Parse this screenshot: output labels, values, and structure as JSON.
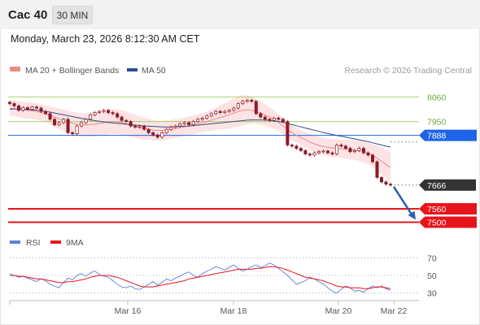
{
  "header": {
    "symbol": "Cac 40",
    "timeframe": "30 MIN",
    "datetime": "Monday, March 23, 2026 8:12:30 AM CET"
  },
  "legend": {
    "ma20_label": "MA 20 + Bollinger Bands",
    "ma50_label": "MA 50",
    "rsi_label": "RSI",
    "ma9_label": "9MA",
    "credit": "Research © 2026 Trading Central"
  },
  "colors": {
    "ma20": "#f08a8a",
    "ma50": "#2c4f8c",
    "bollinger_fill": "#fde3e3",
    "resistance": "#a6d36a",
    "resistance_text": "#6ea83a",
    "pivot": "#1e64e8",
    "support": "#e8141c",
    "last_price": "#333333",
    "candle": "#8b1a2a",
    "rsi": "#5b7fd8",
    "rsi_ma": "#e8141c",
    "arrow": "#2e5fae"
  },
  "chart_data": [
    {
      "type": "candlestick",
      "ylim": [
        7440,
        8130
      ],
      "x_tick_labels": [
        "Mar 16",
        "Mar 18",
        "Mar 20",
        "Mar 22"
      ],
      "levels": [
        {
          "value": 8060,
          "label": "8060",
          "kind": "resistance"
        },
        {
          "value": 7950,
          "label": "7950",
          "kind": "resistance"
        },
        {
          "value": 7888,
          "label": "7888",
          "kind": "pivot"
        },
        {
          "value": 7666,
          "label": "7666",
          "kind": "last"
        },
        {
          "value": 7560,
          "label": "7560",
          "kind": "support"
        },
        {
          "value": 7500,
          "label": "7500",
          "kind": "support"
        }
      ],
      "close_series": [
        8030,
        8020,
        8000,
        8012,
        8005,
        8015,
        8010,
        7995,
        7985,
        7960,
        7935,
        7945,
        7960,
        7900,
        7895,
        7930,
        7945,
        7960,
        7980,
        7990,
        7995,
        8000,
        7990,
        7985,
        7970,
        7955,
        7950,
        7930,
        7925,
        7930,
        7915,
        7900,
        7890,
        7880,
        7900,
        7915,
        7925,
        7930,
        7940,
        7945,
        7935,
        7950,
        7960,
        7965,
        7975,
        7985,
        7995,
        7990,
        7995,
        8000,
        8010,
        8030,
        8040,
        8045,
        8040,
        7985,
        7970,
        7960,
        7955,
        7965,
        7960,
        7950,
        7845,
        7840,
        7830,
        7820,
        7805,
        7800,
        7810,
        7815,
        7818,
        7810,
        7805,
        7845,
        7840,
        7830,
        7815,
        7820,
        7830,
        7810,
        7800,
        7770,
        7700,
        7680,
        7670,
        7666
      ],
      "ma20_series": [
        8010,
        8008,
        8005,
        8002,
        8000,
        7998,
        7995,
        7990,
        7985,
        7978,
        7970,
        7962,
        7955,
        7948,
        7942,
        7938,
        7936,
        7935,
        7936,
        7938,
        7942,
        7945,
        7948,
        7950,
        7948,
        7945,
        7940,
        7935,
        7928,
        7922,
        7918,
        7915,
        7912,
        7910,
        7910,
        7912,
        7915,
        7918,
        7922,
        7926,
        7930,
        7935,
        7940,
        7945,
        7950,
        7956,
        7962,
        7968,
        7974,
        7980,
        7988,
        7995,
        8000,
        8002,
        8000,
        7995,
        7988,
        7980,
        7970,
        7958,
        7945,
        7930,
        7915,
        7900,
        7888,
        7878,
        7868,
        7858,
        7850,
        7843,
        7838,
        7835,
        7832,
        7830,
        7828,
        7826,
        7824,
        7822,
        7820,
        7815,
        7808,
        7798,
        7786,
        7772,
        7758,
        7745
      ],
      "ma50_series": [
        8005,
        8006,
        8006,
        8005,
        8004,
        8002,
        8000,
        7998,
        7995,
        7992,
        7988,
        7984,
        7980,
        7976,
        7972,
        7968,
        7964,
        7960,
        7957,
        7954,
        7951,
        7948,
        7946,
        7944,
        7942,
        7940,
        7938,
        7936,
        7934,
        7932,
        7930,
        7929,
        7928,
        7927,
        7926,
        7926,
        7926,
        7927,
        7928,
        7929,
        7930,
        7932,
        7934,
        7936,
        7938,
        7940,
        7942,
        7944,
        7946,
        7948,
        7950,
        7952,
        7954,
        7956,
        7957,
        7957,
        7957,
        7956,
        7955,
        7953,
        7950,
        7946,
        7941,
        7936,
        7931,
        7926,
        7921,
        7916,
        7911,
        7906,
        7901,
        7896,
        7892,
        7888,
        7884,
        7880,
        7876,
        7872,
        7868,
        7864,
        7860,
        7855,
        7850,
        7845,
        7840,
        7836
      ],
      "bollinger_upper": [
        8045,
        8043,
        8040,
        8038,
        8036,
        8034,
        8031,
        8027,
        8023,
        8018,
        8013,
        8008,
        8003,
        7998,
        7994,
        7990,
        7988,
        7988,
        7990,
        7993,
        7997,
        8001,
        8004,
        8006,
        8004,
        8000,
        7994,
        7988,
        7980,
        7973,
        7967,
        7962,
        7958,
        7955,
        7954,
        7955,
        7957,
        7960,
        7964,
        7968,
        7972,
        7977,
        7982,
        7988,
        7995,
        8003,
        8012,
        8022,
        8032,
        8042,
        8053,
        8063,
        8068,
        8066,
        8060,
        8050,
        8040,
        8028,
        8014,
        7998,
        7982,
        7966,
        7950,
        7935,
        7922,
        7912,
        7903,
        7895,
        7888,
        7882,
        7877,
        7874,
        7872,
        7870,
        7869,
        7868,
        7867,
        7866,
        7865,
        7862,
        7857,
        7850,
        7842,
        7833,
        7823,
        7813
      ],
      "bollinger_lower": [
        7975,
        7973,
        7970,
        7966,
        7964,
        7962,
        7959,
        7953,
        7947,
        7938,
        7927,
        7916,
        7907,
        7898,
        7890,
        7886,
        7884,
        7882,
        7882,
        7883,
        7887,
        7889,
        7892,
        7894,
        7892,
        7890,
        7886,
        7882,
        7876,
        7871,
        7869,
        7868,
        7866,
        7865,
        7866,
        7869,
        7873,
        7876,
        7880,
        7884,
        7888,
        7893,
        7898,
        7902,
        7905,
        7909,
        7912,
        7914,
        7916,
        7918,
        7923,
        7927,
        7932,
        7938,
        7940,
        7940,
        7936,
        7932,
        7926,
        7918,
        7908,
        7894,
        7880,
        7865,
        7854,
        7844,
        7833,
        7821,
        7812,
        7804,
        7799,
        7796,
        7792,
        7790,
        7787,
        7784,
        7781,
        7778,
        7775,
        7768,
        7759,
        7746,
        7730,
        7711,
        7693,
        7677
      ],
      "forecast": {
        "from": 7666,
        "to": 7500
      }
    },
    {
      "type": "line",
      "name": "RSI",
      "ylim": [
        26,
        74
      ],
      "y_tick_labels": [
        "70",
        "50",
        "30"
      ],
      "rsi_series": [
        52,
        50,
        48,
        49,
        47,
        45,
        43,
        46,
        44,
        40,
        38,
        36,
        42,
        47,
        45,
        50,
        52,
        49,
        53,
        55,
        51,
        49,
        48,
        44,
        40,
        37,
        36,
        38,
        35,
        34,
        37,
        40,
        43,
        39,
        42,
        46,
        44,
        47,
        49,
        52,
        54,
        50,
        48,
        52,
        55,
        57,
        60,
        58,
        56,
        59,
        62,
        58,
        55,
        57,
        60,
        62,
        59,
        61,
        64,
        62,
        58,
        54,
        50,
        45,
        40,
        42,
        44,
        48,
        46,
        43,
        40,
        36,
        32,
        30,
        34,
        38,
        36,
        32,
        33,
        31,
        35,
        38,
        36,
        38,
        35,
        33
      ],
      "rsi_ma_series": [
        50,
        50,
        49,
        49,
        48,
        47,
        46,
        46,
        45,
        44,
        43,
        42,
        42,
        43,
        43,
        44,
        45,
        46,
        48,
        49,
        50,
        50,
        50,
        49,
        48,
        46,
        44,
        42,
        40,
        38,
        37,
        37,
        37,
        38,
        39,
        40,
        41,
        42,
        43,
        44,
        46,
        47,
        48,
        49,
        50,
        51,
        52,
        53,
        54,
        55,
        56,
        57,
        57,
        57,
        57,
        58,
        58,
        59,
        60,
        60,
        59,
        58,
        56,
        54,
        52,
        50,
        48,
        47,
        46,
        45,
        44,
        42,
        40,
        38,
        37,
        37,
        36,
        36,
        36,
        35,
        35,
        36,
        37,
        37,
        36,
        35
      ]
    }
  ]
}
